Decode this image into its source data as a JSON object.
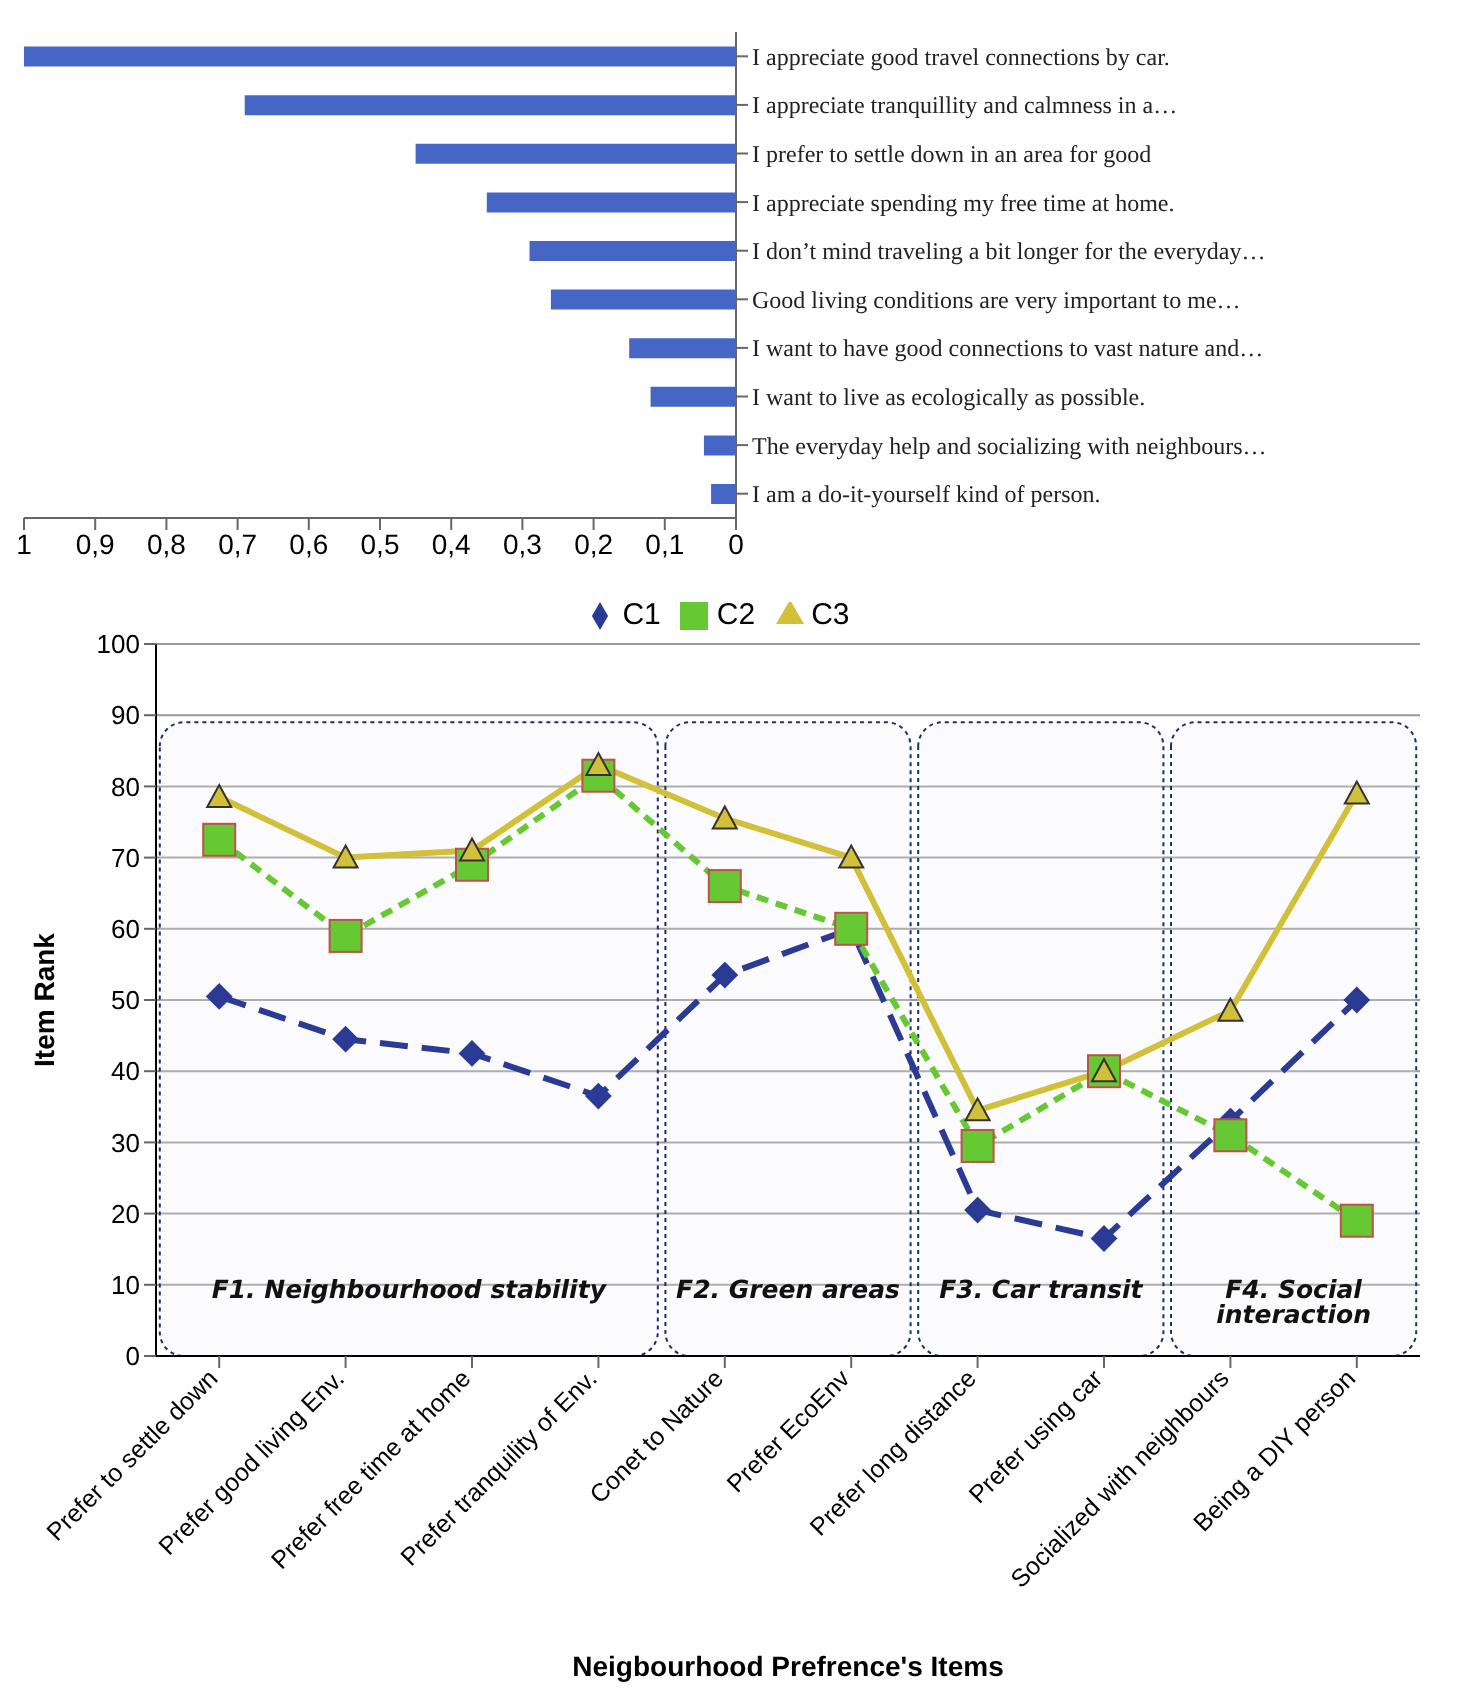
{
  "chart_data": [
    {
      "type": "bar",
      "orientation": "horizontal",
      "categories": [
        "I appreciate good travel connections by car.",
        "I appreciate tranquillity and calmness in a…",
        "I prefer to settle down in an area for good",
        "I appreciate spending my free time at home.",
        "I don’t mind traveling a bit longer for the everyday…",
        "Good living conditions are very important to me…",
        "I want to have good connections to vast nature and…",
        "I want to live as ecologically as possible.",
        "The everyday help and socializing with neighbours…",
        "I am a do-it-yourself kind of person."
      ],
      "values": [
        1.0,
        0.69,
        0.45,
        0.35,
        0.29,
        0.26,
        0.15,
        0.12,
        0.045,
        0.035
      ],
      "color": "#4666c6",
      "xlim": [
        1,
        0
      ],
      "xticks": [
        1,
        {
          "value": 0.9,
          "label": "0,9"
        },
        {
          "value": 0.8,
          "label": "0,8"
        },
        {
          "value": 0.7,
          "label": "0,7"
        },
        {
          "value": 0.6,
          "label": "0,6"
        },
        {
          "value": 0.5,
          "label": "0,5"
        },
        {
          "value": 0.4,
          "label": "0,4"
        },
        {
          "value": 0.3,
          "label": "0,3"
        },
        {
          "value": 0.2,
          "label": "0,2"
        },
        {
          "value": 0.1,
          "label": "0,1"
        },
        0
      ]
    },
    {
      "type": "line",
      "xlabel": "Neigbourhood Prefrence's Items",
      "ylabel": "Item Rank",
      "categories": [
        "Prefer to settle down",
        "Prefer good living Env.",
        "Prefer free time at home",
        "Prefer tranquility of Env.",
        "Conet to Nature",
        "Prefer EcoEnv",
        "Prefer long distance",
        "Prefer using car",
        "Socialized with neighbours",
        "Being a DIY person"
      ],
      "series": [
        {
          "name": "C1",
          "color": "#2b3a94",
          "marker": "diamond",
          "line_style": "dashed",
          "values": [
            50.5,
            44.5,
            42.5,
            36.5,
            53.5,
            60,
            20.5,
            16.5,
            33,
            50
          ]
        },
        {
          "name": "C2",
          "color": "#66c833",
          "marker": "square",
          "line_style": "dotted",
          "values": [
            72.5,
            59,
            69,
            81.5,
            66,
            60,
            29.5,
            40,
            31,
            19
          ]
        },
        {
          "name": "C3",
          "color": "#d2c03a",
          "marker": "triangle",
          "line_style": "solid",
          "values": [
            78.5,
            70,
            71,
            83,
            75.5,
            70,
            34.5,
            40,
            48.5,
            79
          ]
        }
      ],
      "ylim": [
        0,
        100
      ],
      "yticks": [
        0,
        10,
        20,
        30,
        40,
        50,
        60,
        70,
        80,
        90,
        100
      ],
      "grid": "y",
      "legend": "top",
      "bands": [
        {
          "axis": "x",
          "from": "Prefer to settle down",
          "to": "Prefer tranquility of Env.",
          "label": "F1. Neighbourhood stability"
        },
        {
          "axis": "x",
          "from": "Conet to Nature",
          "to": "Prefer EcoEnv",
          "label": "F2. Green areas"
        },
        {
          "axis": "x",
          "from": "Prefer long distance",
          "to": "Prefer using car",
          "label": "F3. Car transit"
        },
        {
          "axis": "x",
          "from": "Socialized with neighbours",
          "to": "Being a DIY person",
          "label": "F4. Social interaction"
        }
      ]
    }
  ]
}
